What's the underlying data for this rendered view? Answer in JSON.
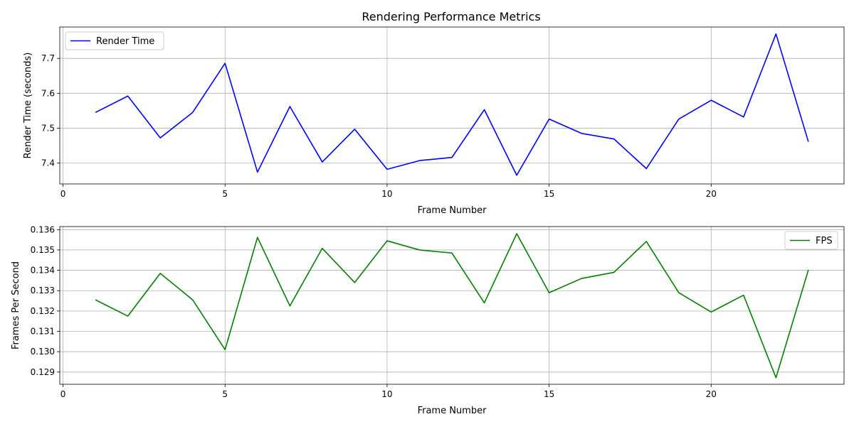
{
  "chart_data": [
    {
      "type": "line",
      "title": "Rendering Performance Metrics",
      "xlabel": "Frame Number",
      "ylabel": "Render Time (seconds)",
      "xlim": [
        -0.1,
        24.1
      ],
      "ylim": [
        7.34,
        7.79
      ],
      "xticks": [
        0,
        5,
        10,
        15,
        20
      ],
      "yticks": [
        7.4,
        7.5,
        7.6,
        7.7
      ],
      "grid": true,
      "legend_position": "top-left",
      "x": [
        1,
        2,
        3,
        4,
        5,
        6,
        7,
        8,
        9,
        10,
        11,
        12,
        13,
        14,
        15,
        16,
        17,
        18,
        19,
        20,
        21,
        22,
        23
      ],
      "series": [
        {
          "name": "Render Time",
          "color": "#0000ff",
          "values": [
            7.545,
            7.592,
            7.472,
            7.545,
            7.686,
            7.374,
            7.562,
            7.403,
            7.497,
            7.382,
            7.407,
            7.416,
            7.553,
            7.365,
            7.526,
            7.485,
            7.469,
            7.384,
            7.526,
            7.58,
            7.532,
            7.77,
            7.461
          ]
        }
      ]
    },
    {
      "type": "line",
      "title": "",
      "xlabel": "Frame Number",
      "ylabel": "Frames Per Second",
      "xlim": [
        -0.1,
        24.1
      ],
      "ylim": [
        0.1284,
        0.13615
      ],
      "xticks": [
        0,
        5,
        10,
        15,
        20
      ],
      "yticks": [
        0.129,
        0.13,
        0.131,
        0.132,
        0.133,
        0.134,
        0.135,
        0.136
      ],
      "grid": true,
      "legend_position": "top-right",
      "x": [
        1,
        2,
        3,
        4,
        5,
        6,
        7,
        8,
        9,
        10,
        11,
        12,
        13,
        14,
        15,
        16,
        17,
        18,
        19,
        20,
        21,
        22,
        23
      ],
      "series": [
        {
          "name": "FPS",
          "color": "#008000",
          "values": [
            0.13255,
            0.13175,
            0.13385,
            0.13255,
            0.1301,
            0.13562,
            0.13225,
            0.13508,
            0.1334,
            0.13545,
            0.135,
            0.13485,
            0.1324,
            0.1358,
            0.1329,
            0.1336,
            0.1339,
            0.13542,
            0.1329,
            0.13195,
            0.13278,
            0.12872,
            0.13402
          ]
        }
      ]
    }
  ]
}
